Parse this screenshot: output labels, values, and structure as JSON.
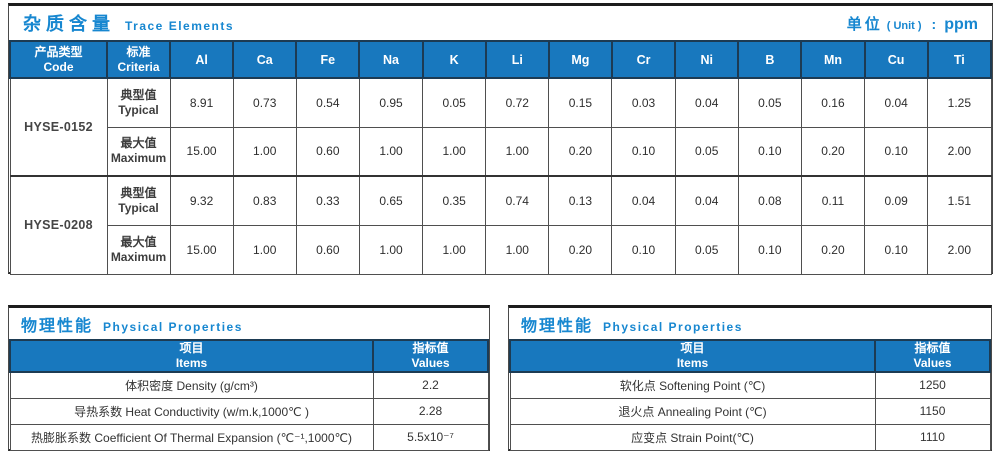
{
  "colors": {
    "header_blue": "#1878be",
    "title_blue": "#1787d0",
    "header_border": "#1d3b53",
    "grid_line": "#4f4f4f"
  },
  "trace": {
    "title_cn": "杂质含量",
    "title_en": "Trace Elements",
    "unit_cn": "单位",
    "unit_en": "( Unit )",
    "unit_colon": ":",
    "unit_value": "ppm",
    "col_code_cn": "产品类型",
    "col_code_en": "Code",
    "col_criteria_cn": "标准",
    "col_criteria_en": "Criteria",
    "elements": [
      "Al",
      "Ca",
      "Fe",
      "Na",
      "K",
      "Li",
      "Mg",
      "Cr",
      "Ni",
      "B",
      "Mn",
      "Cu",
      "Ti"
    ],
    "row_labels": {
      "typical_cn": "典型值",
      "typical_en": "Typical",
      "max_cn": "最大值",
      "max_en": "Maximum"
    },
    "products": [
      {
        "code": "HYSE-0152",
        "typical": [
          "8.91",
          "0.73",
          "0.54",
          "0.95",
          "0.05",
          "0.72",
          "0.15",
          "0.03",
          "0.04",
          "0.05",
          "0.16",
          "0.04",
          "1.25"
        ],
        "maximum": [
          "15.00",
          "1.00",
          "0.60",
          "1.00",
          "1.00",
          "1.00",
          "0.20",
          "0.10",
          "0.05",
          "0.10",
          "0.20",
          "0.10",
          "2.00"
        ]
      },
      {
        "code": "HYSE-0208",
        "typical": [
          "9.32",
          "0.83",
          "0.33",
          "0.65",
          "0.35",
          "0.74",
          "0.13",
          "0.04",
          "0.04",
          "0.08",
          "0.11",
          "0.09",
          "1.51"
        ],
        "maximum": [
          "15.00",
          "1.00",
          "0.60",
          "1.00",
          "1.00",
          "1.00",
          "0.20",
          "0.10",
          "0.05",
          "0.10",
          "0.20",
          "0.10",
          "2.00"
        ]
      }
    ]
  },
  "physical_panels": [
    {
      "title_cn": "物理性能",
      "title_en": "Physical Properties",
      "col_items_cn": "项目",
      "col_items_en": "Items",
      "col_values_cn": "指标值",
      "col_values_en": "Values",
      "rows": [
        {
          "item": "体积密度 Density (g/cm³)",
          "value": "2.2"
        },
        {
          "item": "导热系数 Heat Conductivity (w/m.k,1000℃ )",
          "value": "2.28"
        },
        {
          "item": "热膨胀系数 Coefficient Of Thermal Expansion (℃⁻¹,1000℃)",
          "value": "5.5x10⁻⁷"
        }
      ]
    },
    {
      "title_cn": "物理性能",
      "title_en": "Physical Properties",
      "col_items_cn": "项目",
      "col_items_en": "Items",
      "col_values_cn": "指标值",
      "col_values_en": "Values",
      "rows": [
        {
          "item": "软化点 Softening Point (℃)",
          "value": "1250"
        },
        {
          "item": "退火点 Annealing Point (℃)",
          "value": "1150"
        },
        {
          "item": "应变点 Strain Point(℃)",
          "value": "1110"
        }
      ]
    }
  ]
}
